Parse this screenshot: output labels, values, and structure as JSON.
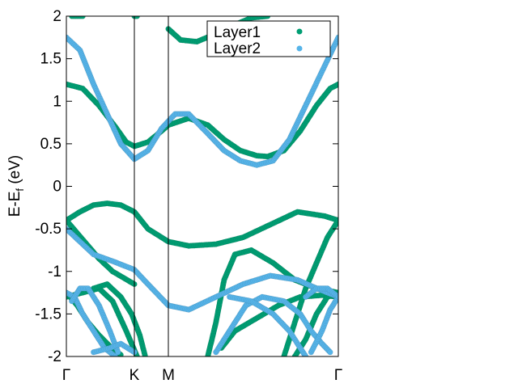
{
  "chart_data": {
    "type": "scatter",
    "title": "",
    "ylabel_main": "E-E",
    "ylabel_sub": "f",
    "ylabel_unit": " (eV)",
    "xlabel": "",
    "ylim": [
      -2,
      2
    ],
    "yticks": [
      "2",
      "1.5",
      "1",
      "0.5",
      "0",
      "-0.5",
      "-1",
      "-1.5",
      "-2"
    ],
    "ytick_values": [
      2,
      1.5,
      1,
      0.5,
      0,
      -0.5,
      -1,
      -1.5,
      -2
    ],
    "xlim": [
      0,
      1
    ],
    "xticks": [
      {
        "label": "Γ",
        "x": 0.0
      },
      {
        "label": "K",
        "x": 0.25
      },
      {
        "label": "M",
        "x": 0.375
      },
      {
        "label": "Γ",
        "x": 1.0
      }
    ],
    "vlines": [
      0.25,
      0.375
    ],
    "legend": {
      "position": "top-right",
      "entries": [
        "Layer1",
        "Layer2"
      ]
    },
    "series": [
      {
        "name": "Layer1",
        "color": "#009e73",
        "bands": [
          [
            [
              0,
              1.2
            ],
            [
              0.06,
              1.15
            ],
            [
              0.12,
              0.95
            ],
            [
              0.18,
              0.7
            ],
            [
              0.22,
              0.52
            ],
            [
              0.25,
              0.47
            ],
            [
              0.3,
              0.52
            ],
            [
              0.35,
              0.65
            ],
            [
              0.375,
              0.72
            ],
            [
              0.45,
              0.8
            ],
            [
              0.52,
              0.72
            ],
            [
              0.58,
              0.55
            ],
            [
              0.64,
              0.42
            ],
            [
              0.7,
              0.36
            ],
            [
              0.74,
              0.35
            ],
            [
              0.8,
              0.42
            ],
            [
              0.86,
              0.65
            ],
            [
              0.92,
              0.95
            ],
            [
              0.97,
              1.15
            ],
            [
              1,
              1.2
            ]
          ],
          [
            [
              0,
              -0.4
            ],
            [
              0.05,
              -0.3
            ],
            [
              0.1,
              -0.22
            ],
            [
              0.15,
              -0.2
            ],
            [
              0.2,
              -0.22
            ],
            [
              0.25,
              -0.3
            ],
            [
              0.3,
              -0.5
            ],
            [
              0.375,
              -0.65
            ],
            [
              0.45,
              -0.7
            ],
            [
              0.55,
              -0.68
            ],
            [
              0.65,
              -0.6
            ],
            [
              0.75,
              -0.45
            ],
            [
              0.85,
              -0.3
            ],
            [
              0.95,
              -0.35
            ],
            [
              1,
              -0.4
            ]
          ],
          [
            [
              0,
              -0.4
            ],
            [
              0.04,
              -0.55
            ],
            [
              0.08,
              -0.7
            ],
            [
              0.12,
              -0.85
            ],
            [
              0.17,
              -1.0
            ],
            [
              0.25,
              -1.15
            ]
          ],
          [
            [
              0,
              -1.3
            ],
            [
              0.06,
              -1.25
            ],
            [
              0.12,
              -1.2
            ],
            [
              0.17,
              -1.35
            ],
            [
              0.22,
              -1.7
            ],
            [
              0.26,
              -2.0
            ]
          ],
          [
            [
              0,
              -1.25
            ],
            [
              0.04,
              -1.4
            ],
            [
              0.08,
              -1.6
            ],
            [
              0.12,
              -1.75
            ],
            [
              0.16,
              -1.88
            ],
            [
              0.2,
              -1.98
            ]
          ],
          [
            [
              0.1,
              -1.2
            ],
            [
              0.15,
              -1.15
            ],
            [
              0.2,
              -1.3
            ],
            [
              0.24,
              -1.5
            ],
            [
              0.27,
              -1.75
            ],
            [
              0.29,
              -2.0
            ]
          ],
          [
            [
              0.52,
              -2.0
            ],
            [
              0.55,
              -1.6
            ],
            [
              0.58,
              -1.1
            ],
            [
              0.62,
              -0.8
            ],
            [
              0.68,
              -0.75
            ],
            [
              0.76,
              -0.9
            ],
            [
              0.84,
              -1.1
            ],
            [
              0.92,
              -1.2
            ],
            [
              1,
              -1.25
            ]
          ],
          [
            [
              0.57,
              -1.9
            ],
            [
              0.62,
              -1.7
            ],
            [
              0.7,
              -1.55
            ],
            [
              0.78,
              -1.4
            ],
            [
              0.86,
              -1.3
            ],
            [
              0.94,
              -1.28
            ],
            [
              1,
              -1.3
            ]
          ],
          [
            [
              0.8,
              -2.0
            ],
            [
              0.84,
              -1.6
            ],
            [
              0.88,
              -1.2
            ],
            [
              0.92,
              -0.9
            ],
            [
              0.96,
              -0.6
            ],
            [
              1,
              -0.4
            ]
          ],
          [
            [
              0.84,
              -2.0
            ],
            [
              0.88,
              -1.8
            ],
            [
              0.92,
              -1.5
            ],
            [
              0.96,
              -1.3
            ],
            [
              1,
              -1.25
            ]
          ],
          [
            [
              0.25,
              2.0
            ],
            [
              0.26,
              2.0
            ]
          ],
          [
            [
              0.375,
              1.85
            ],
            [
              0.42,
              1.72
            ],
            [
              0.48,
              1.7
            ],
            [
              0.54,
              1.78
            ],
            [
              0.62,
              1.9
            ],
            [
              0.68,
              1.98
            ],
            [
              0.74,
              2.0
            ]
          ],
          [
            [
              0.02,
              2.0
            ],
            [
              0.06,
              2.0
            ]
          ]
        ]
      },
      {
        "name": "Layer2",
        "color": "#56b4e9",
        "bands": [
          [
            [
              0,
              1.75
            ],
            [
              0.05,
              1.6
            ],
            [
              0.1,
              1.2
            ],
            [
              0.15,
              0.85
            ],
            [
              0.2,
              0.5
            ],
            [
              0.25,
              0.32
            ],
            [
              0.3,
              0.42
            ],
            [
              0.35,
              0.68
            ],
            [
              0.4,
              0.85
            ],
            [
              0.45,
              0.85
            ],
            [
              0.52,
              0.62
            ],
            [
              0.58,
              0.42
            ],
            [
              0.64,
              0.3
            ],
            [
              0.7,
              0.25
            ],
            [
              0.76,
              0.3
            ],
            [
              0.82,
              0.55
            ],
            [
              0.88,
              0.95
            ],
            [
              0.94,
              1.35
            ],
            [
              1,
              1.75
            ]
          ],
          [
            [
              0,
              -1.25
            ],
            [
              0.03,
              -1.3
            ],
            [
              0.06,
              -1.5
            ],
            [
              0.1,
              -1.7
            ],
            [
              0.14,
              -1.9
            ],
            [
              0.18,
              -2.0
            ]
          ],
          [
            [
              0.02,
              -1.35
            ],
            [
              0.05,
              -1.2
            ],
            [
              0.08,
              -1.2
            ],
            [
              0.12,
              -1.4
            ],
            [
              0.16,
              -1.7
            ],
            [
              0.19,
              -1.95
            ]
          ],
          [
            [
              0.1,
              -1.95
            ],
            [
              0.16,
              -1.9
            ],
            [
              0.2,
              -1.85
            ],
            [
              0.25,
              -1.95
            ]
          ],
          [
            [
              0,
              -0.5
            ],
            [
              0.05,
              -0.65
            ],
            [
              0.1,
              -0.8
            ],
            [
              0.17,
              -0.88
            ],
            [
              0.25,
              -0.98
            ],
            [
              0.3,
              -1.15
            ],
            [
              0.375,
              -1.4
            ],
            [
              0.45,
              -1.45
            ],
            [
              0.55,
              -1.3
            ],
            [
              0.65,
              -1.15
            ],
            [
              0.75,
              -1.05
            ],
            [
              0.85,
              -1.1
            ],
            [
              0.92,
              -1.2
            ],
            [
              1,
              -1.3
            ]
          ],
          [
            [
              0.55,
              -1.95
            ],
            [
              0.6,
              -1.7
            ],
            [
              0.66,
              -1.4
            ],
            [
              0.72,
              -1.3
            ],
            [
              0.8,
              -1.35
            ],
            [
              0.86,
              -1.5
            ],
            [
              0.9,
              -1.7
            ],
            [
              0.94,
              -1.85
            ],
            [
              0.97,
              -1.95
            ]
          ],
          [
            [
              0.6,
              -1.3
            ],
            [
              0.68,
              -1.35
            ],
            [
              0.76,
              -1.5
            ],
            [
              0.82,
              -1.7
            ],
            [
              0.86,
              -1.9
            ],
            [
              0.88,
              -2.0
            ]
          ],
          [
            [
              0.9,
              -1.95
            ],
            [
              0.94,
              -1.7
            ],
            [
              0.97,
              -1.45
            ],
            [
              1,
              -1.3
            ]
          ],
          [
            [
              0.88,
              -1.3
            ],
            [
              0.92,
              -1.2
            ],
            [
              0.96,
              -1.2
            ],
            [
              1,
              -1.3
            ]
          ]
        ]
      }
    ]
  }
}
